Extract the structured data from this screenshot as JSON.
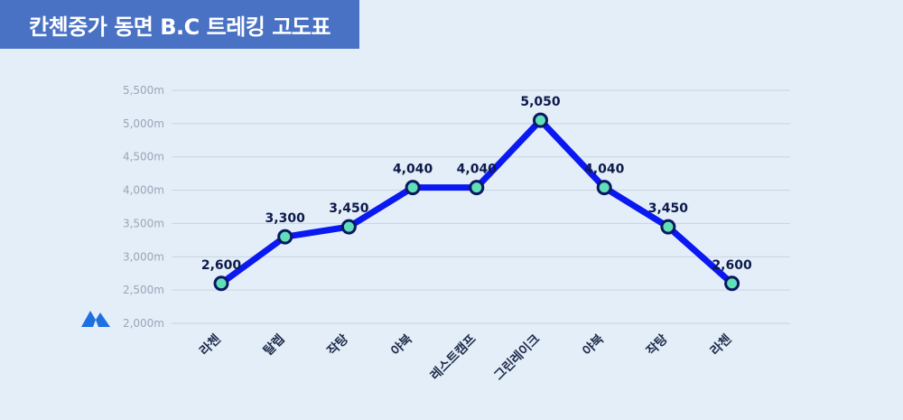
{
  "header": {
    "title": "칸첸중가 동면 B.C 트레킹 고도표"
  },
  "logo": {
    "icon": "mountain-icon",
    "color": "#1e6fe0"
  },
  "colors": {
    "line": "#0a18f2",
    "marker_fill": "#5fe0b8",
    "marker_stroke": "#0b1760",
    "grid": "#c9d3df"
  },
  "chart_data": {
    "type": "line",
    "title": "칸첸중가 동면 B.C 트레킹 고도표",
    "categories": [
      "라첸",
      "탈렙",
      "작탕",
      "야북",
      "레스트캠프",
      "그린레이크",
      "야북",
      "작탕",
      "라첸"
    ],
    "series": [
      {
        "values": [
          2600,
          3300,
          3450,
          4040,
          4040,
          5050,
          4040,
          3450,
          2600
        ],
        "labels": [
          "2,600",
          "3,300",
          "3,450",
          "4,040",
          "4,040",
          "5,050",
          "4,040",
          "3,450",
          "2,600"
        ]
      }
    ],
    "y_ticks": [
      "2,000m",
      "2,500m",
      "3,000m",
      "3,500m",
      "4,000m",
      "4,500m",
      "5,000m",
      "5,500m"
    ],
    "ylim": [
      2000,
      5500
    ],
    "xlabel": "",
    "ylabel": "",
    "grid": true
  }
}
